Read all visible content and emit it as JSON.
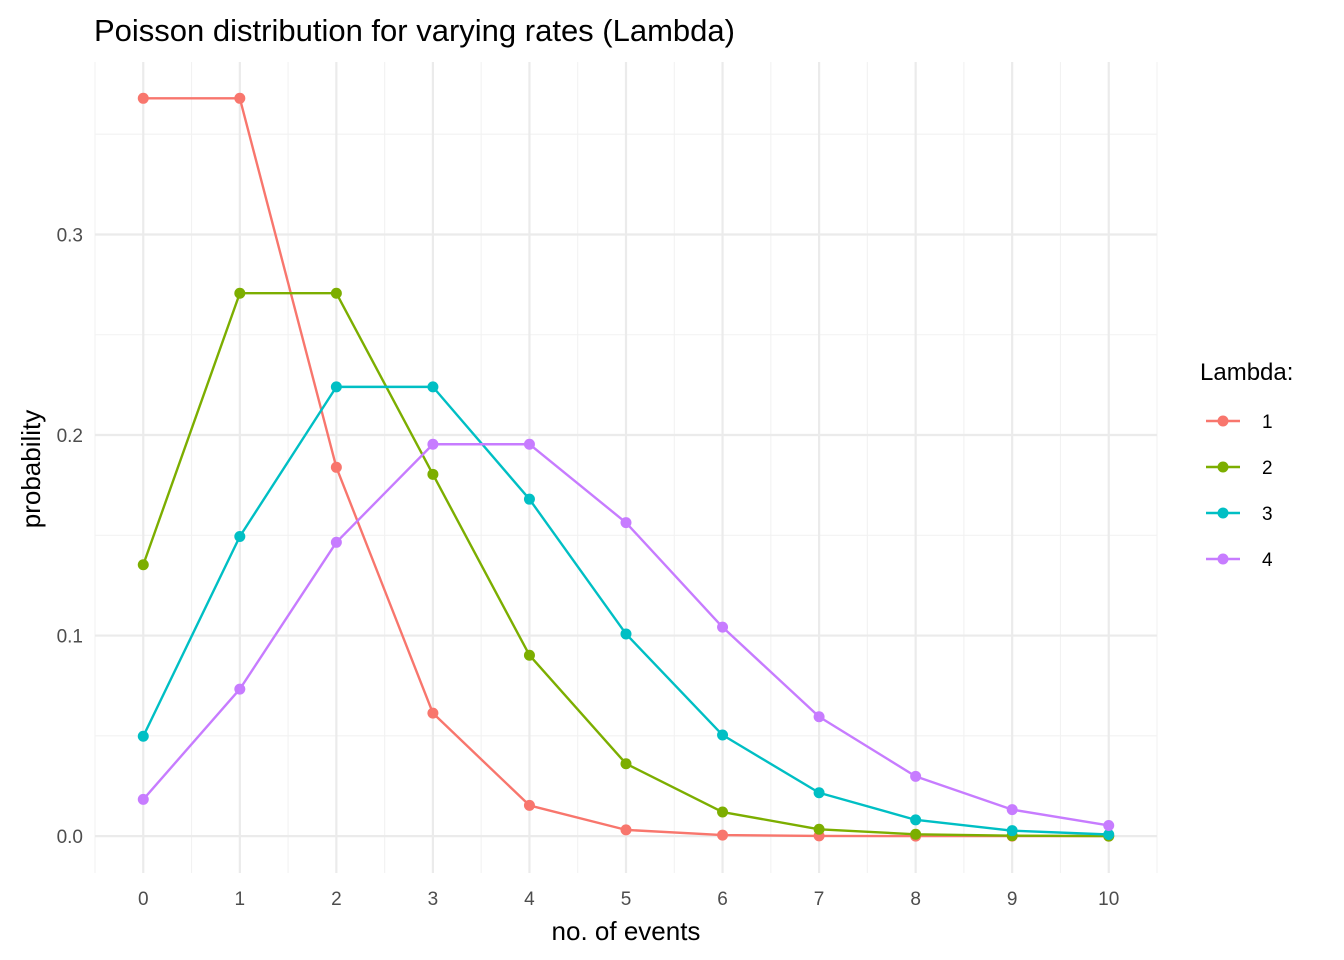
{
  "chart_data": {
    "type": "line",
    "title": "Poisson distribution for varying rates (Lambda)",
    "xlabel": "no. of events",
    "ylabel": "probability",
    "x": [
      0,
      1,
      2,
      3,
      4,
      5,
      6,
      7,
      8,
      9,
      10
    ],
    "x_ticks": [
      "0",
      "1",
      "2",
      "3",
      "4",
      "5",
      "6",
      "7",
      "8",
      "9",
      "10"
    ],
    "y_ticks": [
      "0.0",
      "0.1",
      "0.2",
      "0.3"
    ],
    "y_tick_values": [
      0,
      0.1,
      0.2,
      0.3
    ],
    "xlim": [
      -0.5,
      10.5
    ],
    "ylim": [
      -0.0184,
      0.386
    ],
    "grid": true,
    "legend": {
      "title": "Lambda:",
      "position": "right"
    },
    "series": [
      {
        "name": "1",
        "color": "#F8766D",
        "values": [
          0.3679,
          0.3679,
          0.1839,
          0.0613,
          0.0153,
          0.0031,
          0.0005,
          0.0001,
          0.0,
          0.0,
          0.0
        ]
      },
      {
        "name": "2",
        "color": "#7CAE00",
        "values": [
          0.1353,
          0.2707,
          0.2707,
          0.1804,
          0.0902,
          0.0361,
          0.012,
          0.0034,
          0.0009,
          0.0002,
          0.0
        ]
      },
      {
        "name": "3",
        "color": "#00BFC4",
        "values": [
          0.0498,
          0.1494,
          0.224,
          0.224,
          0.168,
          0.1008,
          0.0504,
          0.0216,
          0.0081,
          0.0027,
          0.0008
        ]
      },
      {
        "name": "4",
        "color": "#C77CFF",
        "values": [
          0.0183,
          0.0733,
          0.1465,
          0.1954,
          0.1954,
          0.1563,
          0.1042,
          0.0595,
          0.0298,
          0.0132,
          0.0053
        ]
      }
    ]
  }
}
